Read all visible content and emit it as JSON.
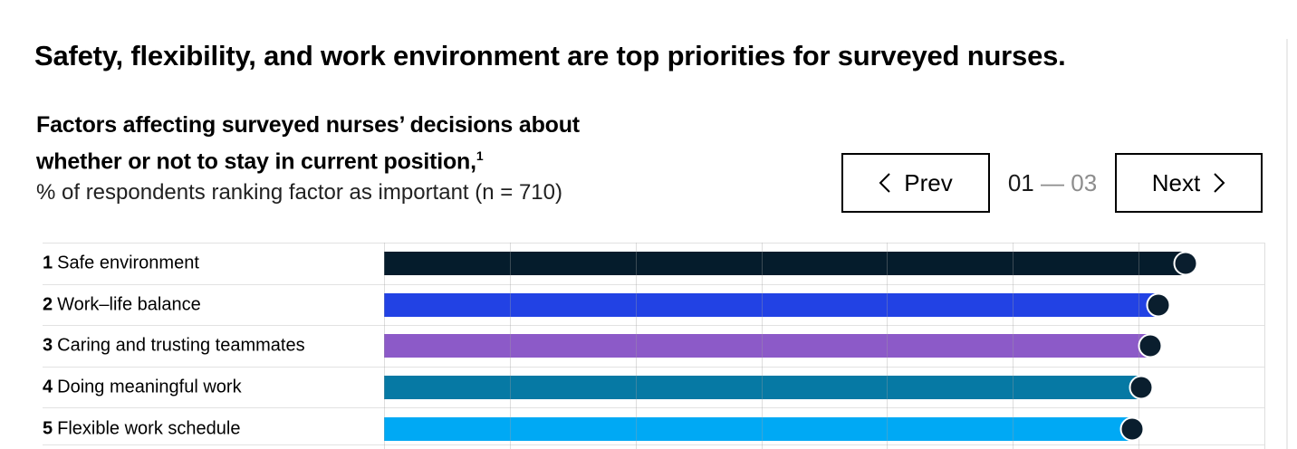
{
  "page": {
    "title": "Safety, flexibility, and work environment are top priorities for surveyed nurses."
  },
  "chart_header": {
    "line1": "Factors affecting surveyed nurses’ decisions about",
    "line2": "whether or not to stay in current position,",
    "footnote_marker": "1",
    "line3": "% of respondents ranking factor as important (n = 710)"
  },
  "pagination": {
    "prev_label": "Prev",
    "next_label": "Next",
    "current": "01",
    "separator": "—",
    "total": "03"
  },
  "chart_data": {
    "type": "bar",
    "orientation": "horizontal",
    "title": "Factors affecting surveyed nurses’ decisions about whether or not to stay in current position,¹",
    "subtitle": "% of respondents ranking factor as important (n = 710)",
    "ranks": [
      "1",
      "2",
      "3",
      "4",
      "5"
    ],
    "categories": [
      "Safe environment",
      "Work–life balance",
      "Caring and trusting teammates",
      "Doing meaningful work",
      "Flexible work schedule"
    ],
    "values": [
      91,
      88,
      87,
      86,
      85
    ],
    "bar_colors": [
      "#051c2c",
      "#2242e4",
      "#8c5ac8",
      "#0679a4",
      "#00a9f4"
    ],
    "dot_color": "#0a1e2e",
    "xlim": [
      0,
      100
    ],
    "gridline_count": 8,
    "grid": true,
    "legend": false,
    "value_labels_shown": false
  }
}
